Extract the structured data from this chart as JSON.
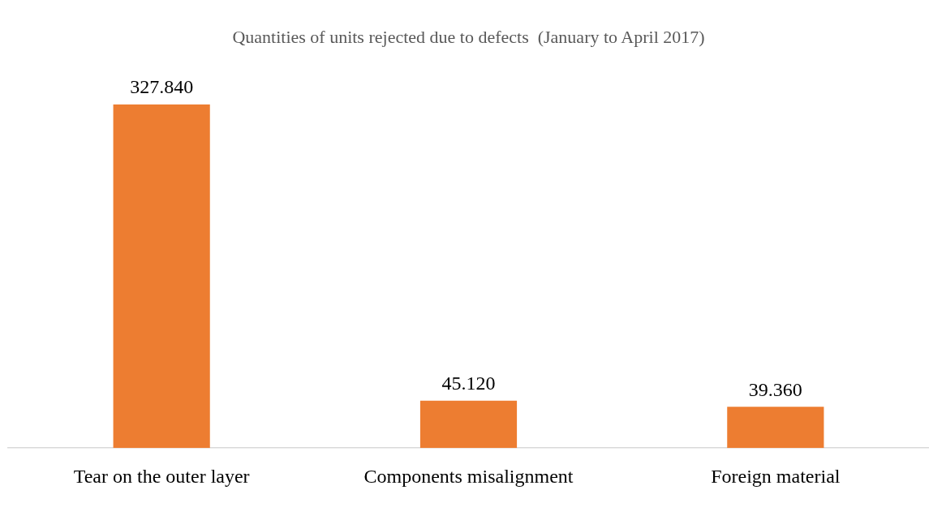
{
  "chart_data": {
    "type": "bar",
    "title": "Quantities of units rejected due to defects  (January to April 2017)",
    "categories": [
      "Tear on the outer layer",
      "Components misalignment",
      "Foreign material"
    ],
    "values": [
      327840,
      45120,
      39360
    ],
    "value_labels": [
      "327.840",
      "45.120",
      "39.360"
    ],
    "color": "#ed7d31",
    "grid": false,
    "legend": false
  }
}
